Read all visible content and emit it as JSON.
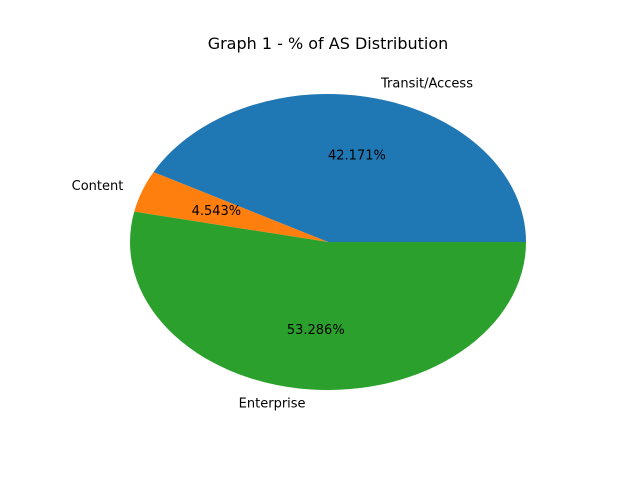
{
  "chart_data": {
    "type": "pie",
    "title": "Graph 1 - % of AS Distribution",
    "categories": [
      "Transit/Access",
      "Content",
      "Enterprise"
    ],
    "values": [
      42.171,
      4.543,
      53.286
    ],
    "value_labels": [
      "42.171%",
      "4.543%",
      "53.286%"
    ],
    "colors": [
      "#1f77b4",
      "#ff7f0e",
      "#2ca02c"
    ],
    "start_angle_deg": 0,
    "direction": "counterclockwise",
    "legend": "none"
  }
}
